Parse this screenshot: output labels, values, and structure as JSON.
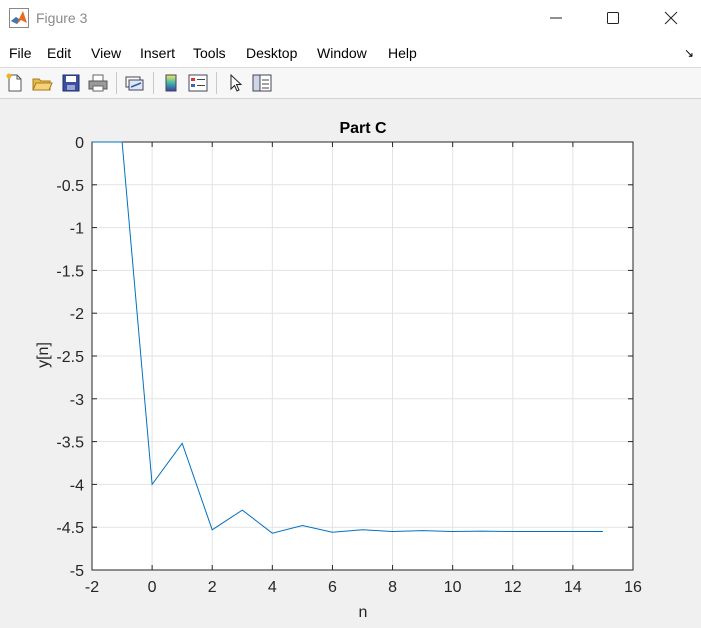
{
  "window": {
    "title": "Figure 3",
    "app_icon": "matlab-icon",
    "controls": [
      "minimize-icon",
      "maximize-icon",
      "close-icon"
    ]
  },
  "menu": {
    "items": [
      "File",
      "Edit",
      "View",
      "Insert",
      "Tools",
      "Desktop",
      "Window",
      "Help"
    ],
    "dock_glyph": "↘"
  },
  "toolbar": {
    "icons": [
      "new-figure-icon",
      "open-file-icon",
      "save-icon",
      "print-icon",
      "link-plot-icon",
      "insert-colorbar-icon",
      "insert-legend-icon",
      "edit-plot-pointer-icon",
      "property-editor-icon"
    ]
  },
  "colors": {
    "line": "#0072bd",
    "grid": "#e3e3e3",
    "axes_bg": "#ffffff",
    "figure_bg": "#f0f0f0"
  },
  "chart_data": {
    "type": "line",
    "title": "Part C",
    "xlabel": "n",
    "ylabel": "y[n]",
    "xlim": [
      -2,
      16
    ],
    "ylim": [
      -5,
      0
    ],
    "grid": true,
    "x_ticks": [
      "-2",
      "0",
      "2",
      "4",
      "6",
      "8",
      "10",
      "12",
      "14",
      "16"
    ],
    "y_ticks": [
      "0",
      "-0.5",
      "-1",
      "-1.5",
      "-2",
      "-2.5",
      "-3",
      "-3.5",
      "-4",
      "-4.5",
      "-5"
    ],
    "x": [
      -2,
      -1,
      0,
      1,
      2,
      3,
      4,
      5,
      6,
      7,
      8,
      9,
      10,
      11,
      12,
      13,
      14,
      15
    ],
    "y": [
      0,
      0,
      -4,
      -3.52,
      -4.53,
      -4.3,
      -4.57,
      -4.48,
      -4.56,
      -4.53,
      -4.55,
      -4.54,
      -4.55,
      -4.545,
      -4.55,
      -4.55,
      -4.55,
      -4.55
    ]
  }
}
